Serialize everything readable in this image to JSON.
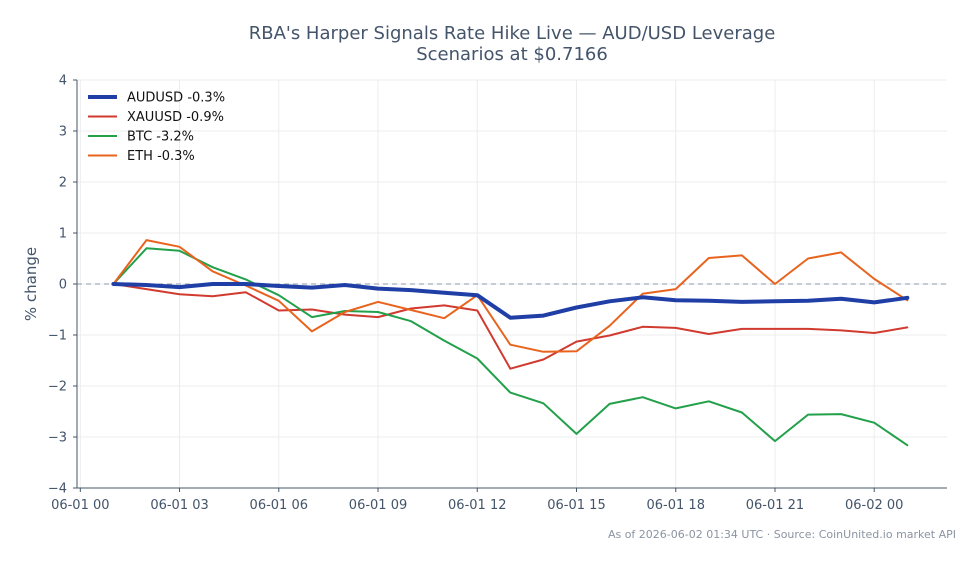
{
  "chart_data": {
    "type": "line",
    "title_lines": [
      "RBA's Harper Signals Rate Hike Live — AUD/USD Leverage",
      "Scenarios at $0.7166"
    ],
    "ylabel": "% change",
    "xlabel": "",
    "ylim": [
      -4,
      4
    ],
    "yticks": [
      4,
      3,
      2,
      1,
      0,
      -1,
      -2,
      -3,
      -4
    ],
    "ytick_labels": [
      "4",
      "3",
      "2",
      "1",
      "0",
      "−1",
      "−2",
      "−3",
      "−4"
    ],
    "xlim": [
      -0.1,
      26.2
    ],
    "xticks": [
      0,
      3,
      6,
      9,
      12,
      15,
      18,
      21,
      24
    ],
    "xtick_labels": [
      "06-01 00",
      "06-01 03",
      "06-01 06",
      "06-01 09",
      "06-01 12",
      "06-01 15",
      "06-01 18",
      "06-01 21",
      "06-02 00"
    ],
    "x_hours": [
      1,
      2,
      3,
      4,
      5,
      6,
      7,
      8,
      9,
      10,
      11,
      12,
      13,
      14,
      15,
      16,
      17,
      18,
      19,
      20,
      21,
      22,
      23,
      24,
      25
    ],
    "zero_line": true,
    "grid": true,
    "legend_position": "top-left",
    "series": [
      {
        "name": "AUDUSD -0.3%",
        "color": "#1f3fa6",
        "width": 4,
        "values": [
          0.0,
          -0.02,
          -0.06,
          0.0,
          0.0,
          -0.04,
          -0.07,
          -0.02,
          -0.09,
          -0.12,
          -0.17,
          -0.22,
          -0.66,
          -0.62,
          -0.46,
          -0.34,
          -0.26,
          -0.32,
          -0.33,
          -0.35,
          -0.34,
          -0.33,
          -0.29,
          -0.36,
          -0.27
        ]
      },
      {
        "name": "XAUUSD -0.9%",
        "color": "#d13a2f",
        "width": 2,
        "values": [
          0.0,
          -0.1,
          -0.2,
          -0.24,
          -0.16,
          -0.52,
          -0.5,
          -0.6,
          -0.65,
          -0.48,
          -0.42,
          -0.52,
          -1.66,
          -1.48,
          -1.13,
          -1.01,
          -0.84,
          -0.86,
          -0.98,
          -0.88,
          -0.88,
          -0.88,
          -0.91,
          -0.96,
          -0.85
        ]
      },
      {
        "name": "BTC -3.2%",
        "color": "#22a04a",
        "width": 2,
        "values": [
          0.0,
          0.7,
          0.65,
          0.33,
          0.09,
          -0.22,
          -0.65,
          -0.53,
          -0.55,
          -0.73,
          -1.11,
          -1.46,
          -2.13,
          -2.34,
          -2.94,
          -2.35,
          -2.22,
          -2.44,
          -2.3,
          -2.52,
          -3.08,
          -2.56,
          -2.55,
          -2.72,
          -3.16
        ]
      },
      {
        "name": "ETH -0.3%",
        "color": "#e8641e",
        "width": 2,
        "values": [
          0.0,
          0.86,
          0.73,
          0.25,
          -0.03,
          -0.33,
          -0.93,
          -0.55,
          -0.35,
          -0.51,
          -0.67,
          -0.22,
          -1.19,
          -1.33,
          -1.32,
          -0.82,
          -0.19,
          -0.1,
          0.51,
          0.56,
          0.0,
          0.5,
          0.62,
          0.1,
          -0.32
        ]
      }
    ]
  },
  "footer": "As of 2026-06-02 01:34 UTC · Source: CoinUnited.io market API"
}
